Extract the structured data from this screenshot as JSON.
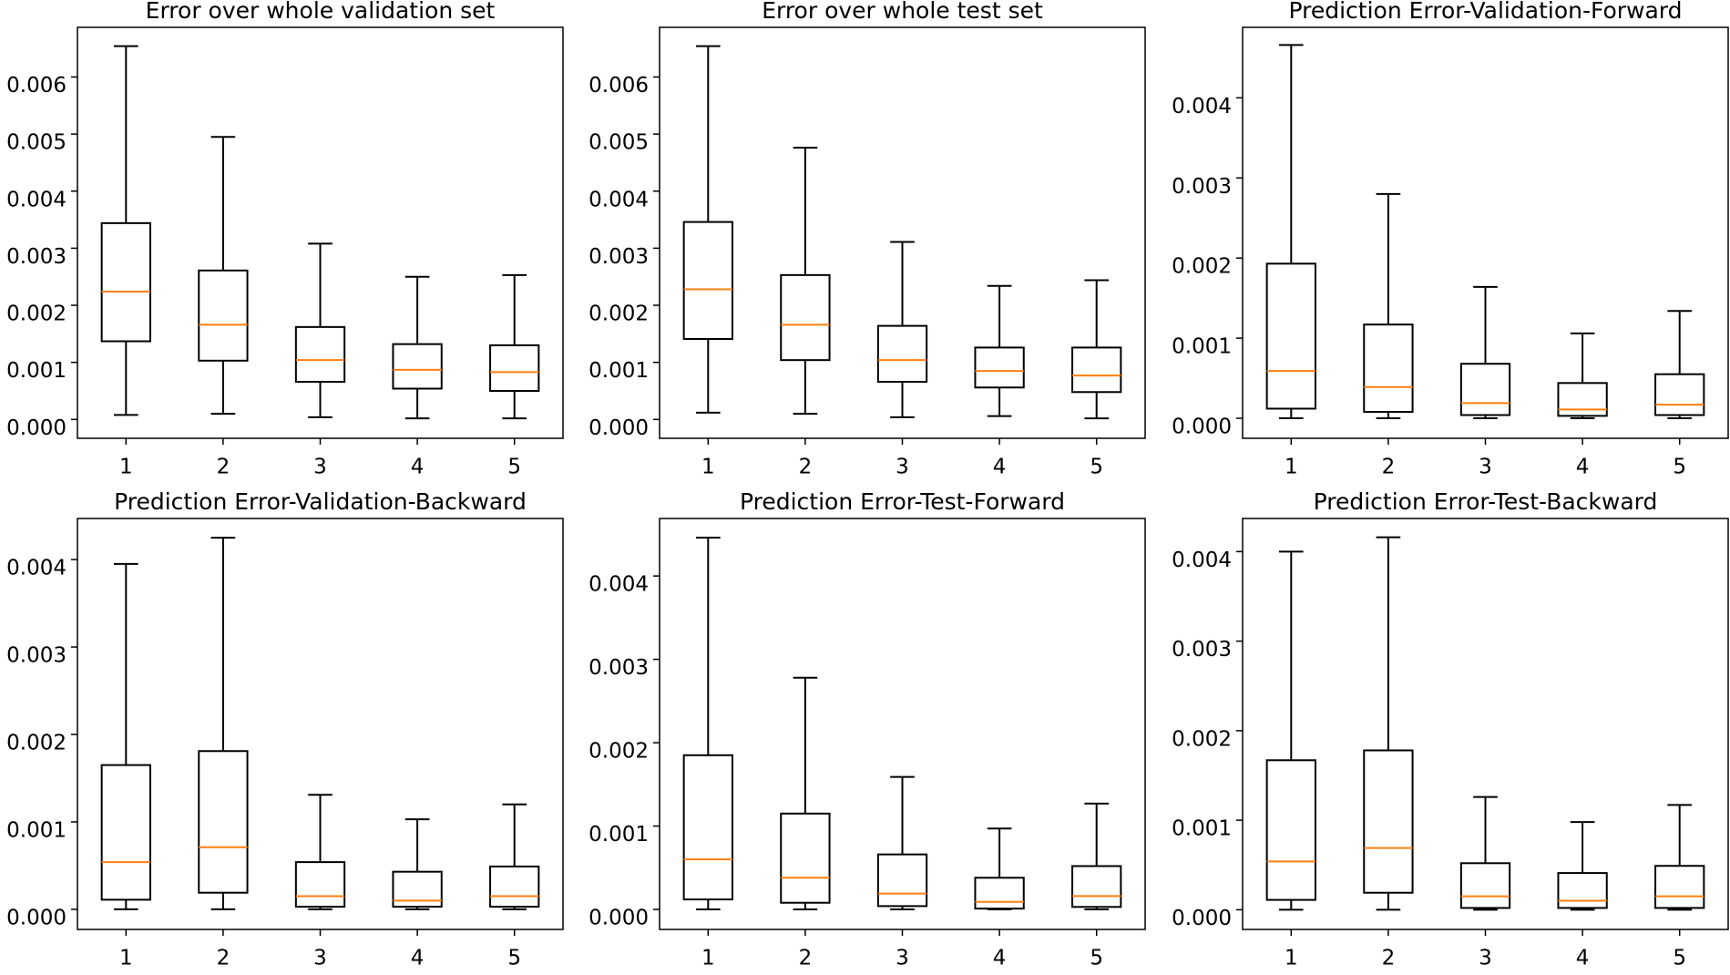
{
  "chart_data": [
    {
      "type": "box",
      "title": "Error over whole validation set",
      "categories": [
        "1",
        "2",
        "3",
        "4",
        "5"
      ],
      "color": "#000000",
      "median_color": "#ff7f0e",
      "ylim": [
        -0.00033,
        0.00687
      ],
      "yticks": [
        {
          "value": 0,
          "label": "0.000"
        },
        {
          "value": 0.001,
          "label": "0.001"
        },
        {
          "value": 0.002,
          "label": "0.002"
        },
        {
          "value": 0.003,
          "label": "0.003"
        },
        {
          "value": 0.004,
          "label": "0.004"
        },
        {
          "value": 0.005,
          "label": "0.005"
        },
        {
          "value": 0.006,
          "label": "0.006"
        }
      ],
      "boxes": [
        {
          "low": 8e-05,
          "q1": 0.00137,
          "median": 0.00224,
          "q3": 0.00344,
          "high": 0.00654
        },
        {
          "low": 0.0001,
          "q1": 0.00103,
          "median": 0.00166,
          "q3": 0.00261,
          "high": 0.00495
        },
        {
          "low": 4e-05,
          "q1": 0.00066,
          "median": 0.00104,
          "q3": 0.00162,
          "high": 0.00308
        },
        {
          "low": 2e-05,
          "q1": 0.00054,
          "median": 0.00087,
          "q3": 0.00132,
          "high": 0.0025
        },
        {
          "low": 2e-05,
          "q1": 0.0005,
          "median": 0.00083,
          "q3": 0.0013,
          "high": 0.00253
        }
      ]
    },
    {
      "type": "box",
      "title": "Error over whole test set",
      "categories": [
        "1",
        "2",
        "3",
        "4",
        "5"
      ],
      "color": "#000000",
      "median_color": "#ff7f0e",
      "ylim": [
        -0.00033,
        0.00687
      ],
      "yticks": [
        {
          "value": 0,
          "label": "0.000"
        },
        {
          "value": 0.001,
          "label": "0.001"
        },
        {
          "value": 0.002,
          "label": "0.002"
        },
        {
          "value": 0.003,
          "label": "0.003"
        },
        {
          "value": 0.004,
          "label": "0.004"
        },
        {
          "value": 0.005,
          "label": "0.005"
        },
        {
          "value": 0.006,
          "label": "0.006"
        }
      ],
      "boxes": [
        {
          "low": 0.00012,
          "q1": 0.00141,
          "median": 0.00228,
          "q3": 0.00346,
          "high": 0.00654
        },
        {
          "low": 0.0001,
          "q1": 0.00104,
          "median": 0.00166,
          "q3": 0.00253,
          "high": 0.00476
        },
        {
          "low": 4e-05,
          "q1": 0.00066,
          "median": 0.00104,
          "q3": 0.00164,
          "high": 0.00311
        },
        {
          "low": 6e-05,
          "q1": 0.00056,
          "median": 0.00085,
          "q3": 0.00126,
          "high": 0.00234
        },
        {
          "low": 2e-05,
          "q1": 0.00048,
          "median": 0.00077,
          "q3": 0.00126,
          "high": 0.00244
        }
      ]
    },
    {
      "type": "box",
      "title": "Prediction Error-Validation-Forward",
      "categories": [
        "1",
        "2",
        "3",
        "4",
        "5"
      ],
      "color": "#000000",
      "median_color": "#ff7f0e",
      "ylim": [
        -0.00025,
        0.00488
      ],
      "yticks": [
        {
          "value": 0,
          "label": "0.000"
        },
        {
          "value": 0.001,
          "label": "0.001"
        },
        {
          "value": 0.002,
          "label": "0.002"
        },
        {
          "value": 0.003,
          "label": "0.003"
        },
        {
          "value": 0.004,
          "label": "0.004"
        }
      ],
      "boxes": [
        {
          "low": 0,
          "q1": 0.00012,
          "median": 0.00059,
          "q3": 0.00193,
          "high": 0.00466
        },
        {
          "low": 0,
          "q1": 8e-05,
          "median": 0.00039,
          "q3": 0.00117,
          "high": 0.0028
        },
        {
          "low": 0,
          "q1": 4e-05,
          "median": 0.00019,
          "q3": 0.00068,
          "high": 0.00164
        },
        {
          "low": 0,
          "q1": 3e-05,
          "median": 0.00011,
          "q3": 0.00044,
          "high": 0.00106
        },
        {
          "low": 0,
          "q1": 4e-05,
          "median": 0.00017,
          "q3": 0.00055,
          "high": 0.00134
        }
      ]
    },
    {
      "type": "box",
      "title": "Prediction Error-Validation-Backward",
      "categories": [
        "1",
        "2",
        "3",
        "4",
        "5"
      ],
      "color": "#000000",
      "median_color": "#ff7f0e",
      "ylim": [
        -0.00023,
        0.00447
      ],
      "yticks": [
        {
          "value": 0,
          "label": "0.000"
        },
        {
          "value": 0.001,
          "label": "0.001"
        },
        {
          "value": 0.002,
          "label": "0.002"
        },
        {
          "value": 0.003,
          "label": "0.003"
        },
        {
          "value": 0.004,
          "label": "0.004"
        }
      ],
      "boxes": [
        {
          "low": 0,
          "q1": 0.00011,
          "median": 0.00054,
          "q3": 0.00165,
          "high": 0.00395
        },
        {
          "low": 0,
          "q1": 0.00019,
          "median": 0.00071,
          "q3": 0.00181,
          "high": 0.00425
        },
        {
          "low": 0,
          "q1": 3e-05,
          "median": 0.00015,
          "q3": 0.00054,
          "high": 0.00131
        },
        {
          "low": 0,
          "q1": 3e-05,
          "median": 0.0001,
          "q3": 0.00043,
          "high": 0.00103
        },
        {
          "low": 0,
          "q1": 3e-05,
          "median": 0.00015,
          "q3": 0.00049,
          "high": 0.0012
        }
      ]
    },
    {
      "type": "box",
      "title": "Prediction Error-Test-Forward",
      "categories": [
        "1",
        "2",
        "3",
        "4",
        "5"
      ],
      "color": "#000000",
      "median_color": "#ff7f0e",
      "ylim": [
        -0.00024,
        0.00469
      ],
      "yticks": [
        {
          "value": 0,
          "label": "0.000"
        },
        {
          "value": 0.001,
          "label": "0.001"
        },
        {
          "value": 0.002,
          "label": "0.002"
        },
        {
          "value": 0.003,
          "label": "0.003"
        },
        {
          "value": 0.004,
          "label": "0.004"
        }
      ],
      "boxes": [
        {
          "low": 0,
          "q1": 0.00012,
          "median": 0.0006,
          "q3": 0.00185,
          "high": 0.00446
        },
        {
          "low": 0,
          "q1": 8e-05,
          "median": 0.00038,
          "q3": 0.00115,
          "high": 0.00278
        },
        {
          "low": 0,
          "q1": 4e-05,
          "median": 0.00019,
          "q3": 0.00066,
          "high": 0.00159
        },
        {
          "low": 0,
          "q1": 1e-05,
          "median": 9e-05,
          "q3": 0.00038,
          "high": 0.00097
        },
        {
          "low": 0,
          "q1": 3e-05,
          "median": 0.00016,
          "q3": 0.00052,
          "high": 0.00127
        }
      ]
    },
    {
      "type": "box",
      "title": "Prediction Error-Test-Backward",
      "categories": [
        "1",
        "2",
        "3",
        "4",
        "5"
      ],
      "color": "#000000",
      "median_color": "#ff7f0e",
      "ylim": [
        -0.00022,
        0.00437
      ],
      "yticks": [
        {
          "value": 0,
          "label": "0.000"
        },
        {
          "value": 0.001,
          "label": "0.001"
        },
        {
          "value": 0.002,
          "label": "0.002"
        },
        {
          "value": 0.003,
          "label": "0.003"
        },
        {
          "value": 0.004,
          "label": "0.004"
        }
      ],
      "boxes": [
        {
          "low": 0,
          "q1": 0.00011,
          "median": 0.00054,
          "q3": 0.00167,
          "high": 0.004
        },
        {
          "low": 0,
          "q1": 0.00019,
          "median": 0.00069,
          "q3": 0.00178,
          "high": 0.00416
        },
        {
          "low": 0,
          "q1": 2e-05,
          "median": 0.00015,
          "q3": 0.00052,
          "high": 0.00126
        },
        {
          "low": 0,
          "q1": 2e-05,
          "median": 0.0001,
          "q3": 0.00041,
          "high": 0.00098
        },
        {
          "low": 0,
          "q1": 2e-05,
          "median": 0.00015,
          "q3": 0.00049,
          "high": 0.00117
        }
      ]
    }
  ]
}
